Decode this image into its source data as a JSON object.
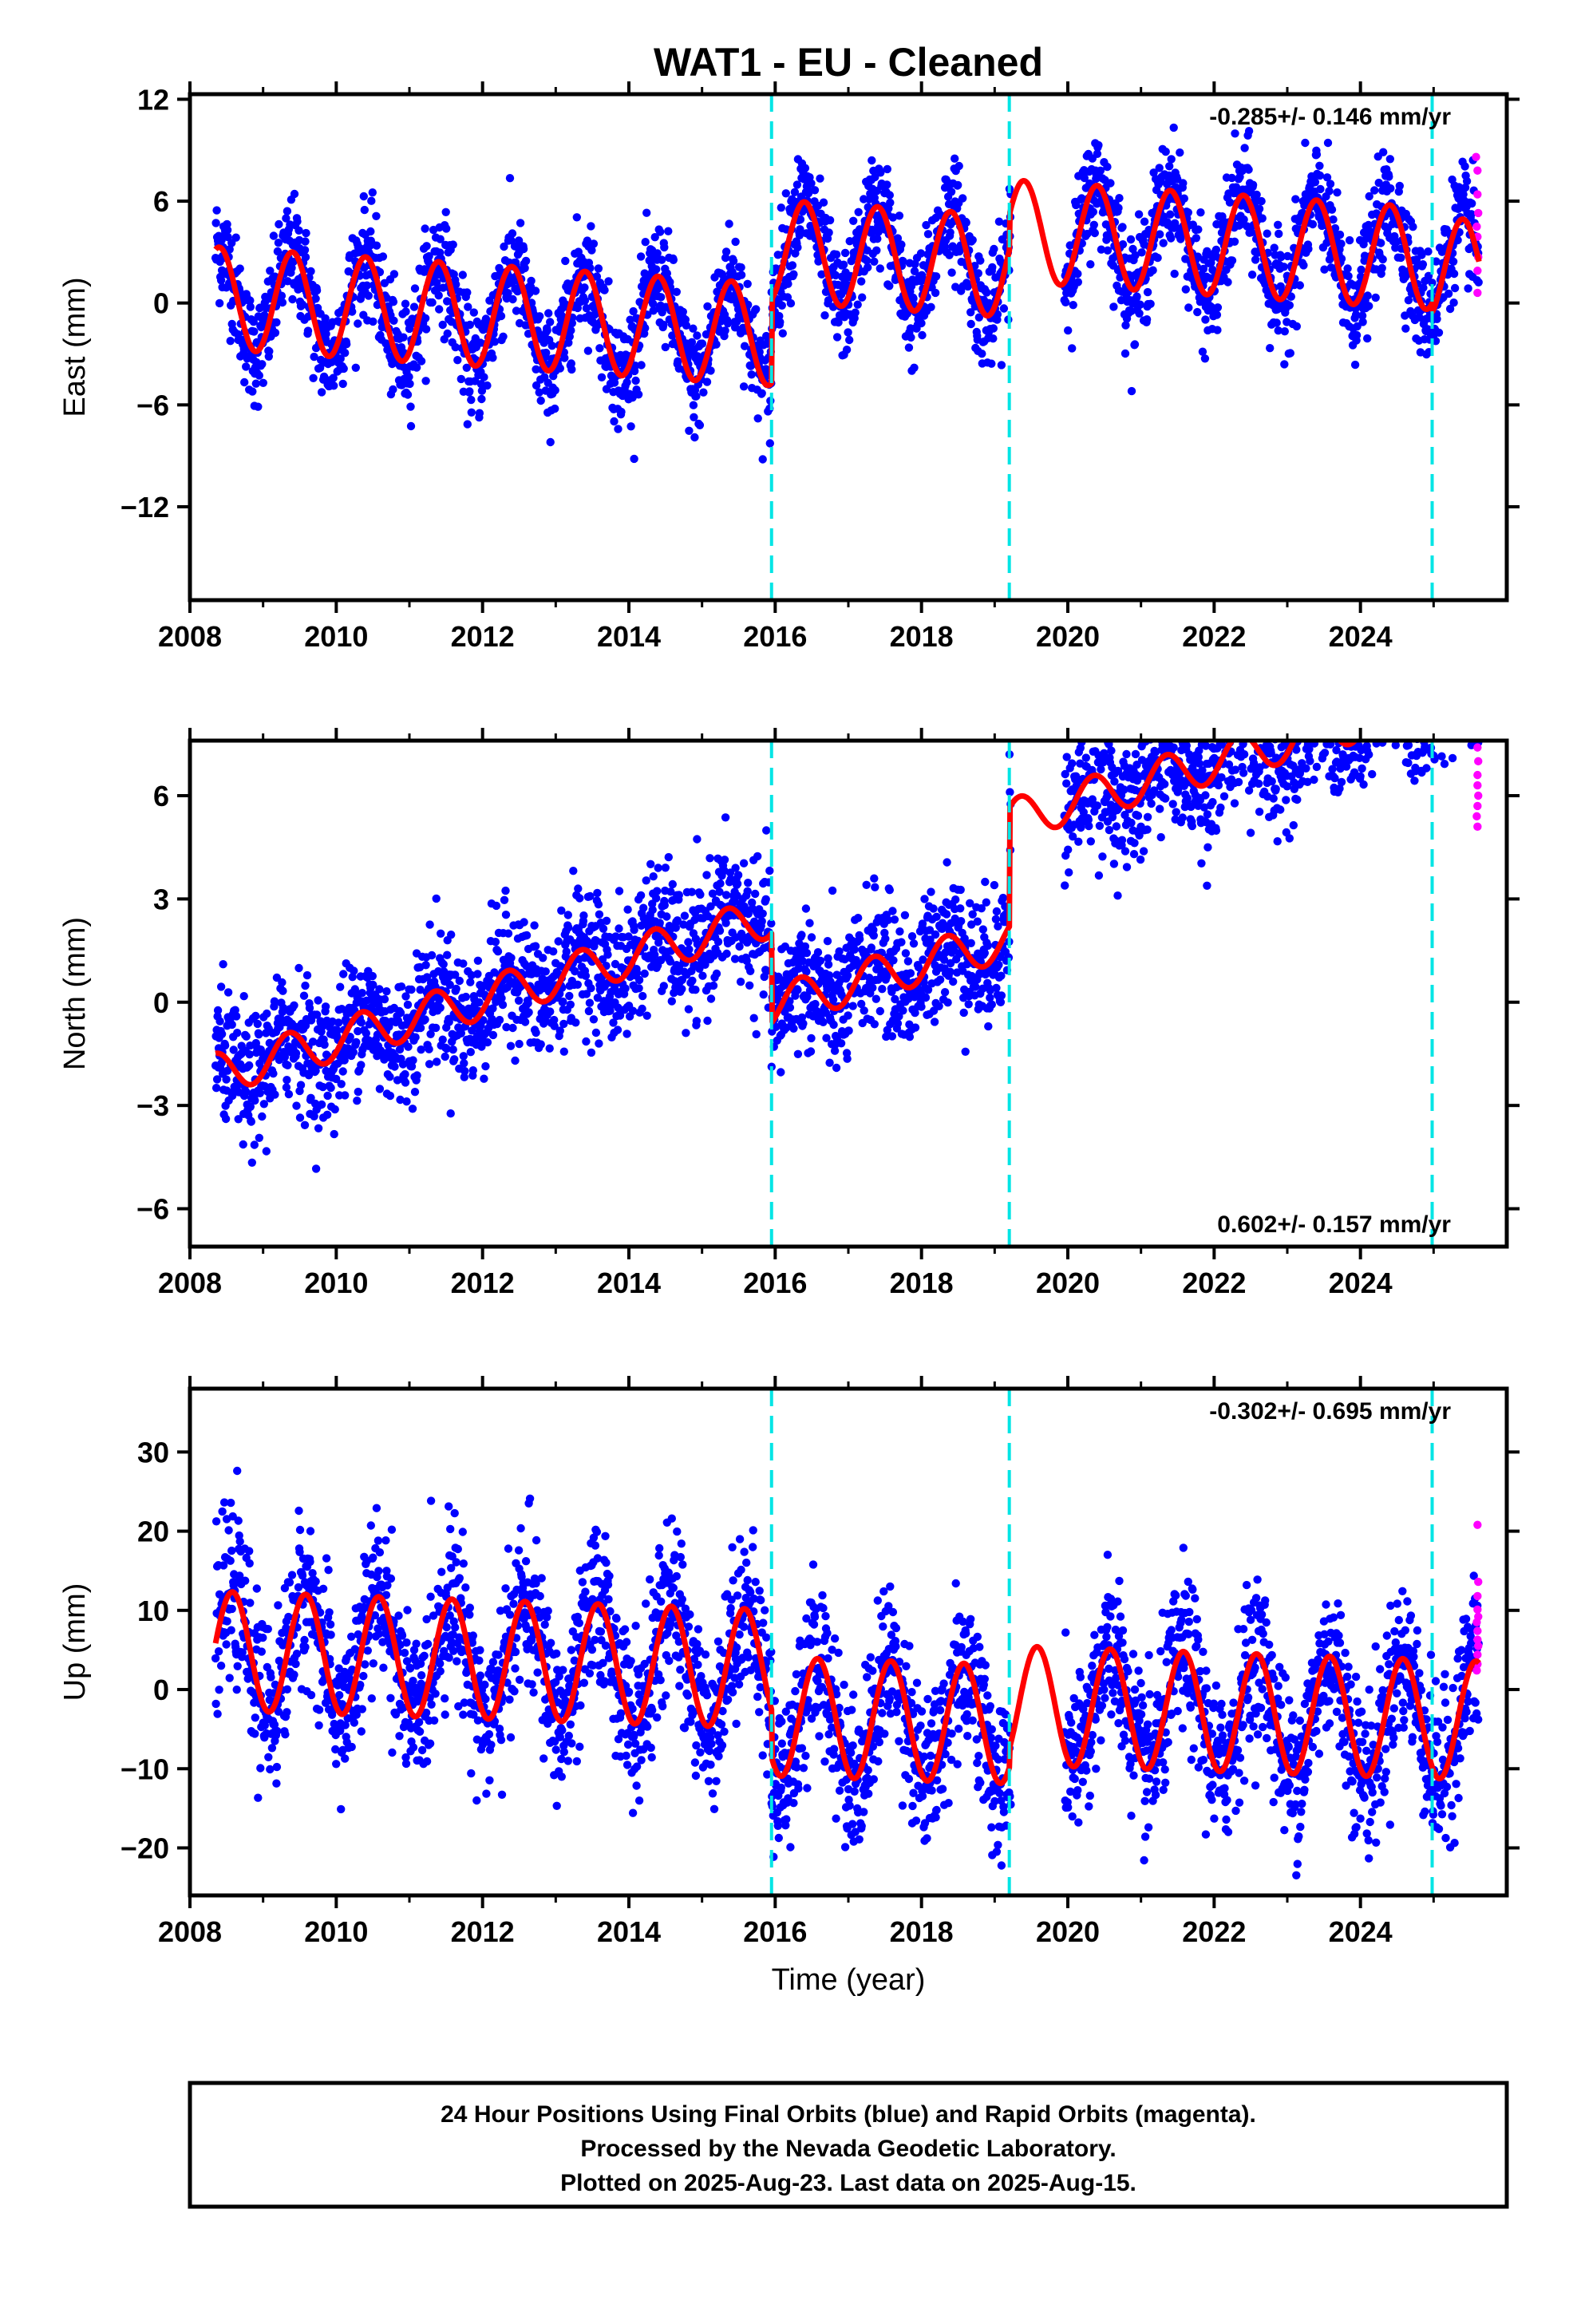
{
  "title": "WAT1  - EU - Cleaned",
  "xlabel": "Time (year)",
  "footer": {
    "line1": "24 Hour Positions Using Final Orbits (blue) and Rapid Orbits (magenta).",
    "line2": "Processed by the Nevada Geodetic Laboratory.",
    "line3": "Plotted on 2025-Aug-23. Last data on 2025-Aug-15."
  },
  "colors": {
    "final_orbits": "#0000ff",
    "rapid_orbits": "#ff00ff",
    "model": "#ff0000",
    "breaks": "#00e5e5"
  },
  "chart_data": [
    {
      "type": "scatter",
      "component": "east",
      "ylabel": "East (mm)",
      "xlim": [
        2008,
        2026
      ],
      "ylim": [
        -17.5,
        12.3
      ],
      "xticks": [
        2008,
        2010,
        2012,
        2014,
        2016,
        2018,
        2020,
        2022,
        2024
      ],
      "yticks": [
        -12,
        -6,
        0,
        6,
        12
      ],
      "grid": false,
      "rate_text": "-0.285+/- 0.146 mm/yr",
      "rate_position": "top-right",
      "breaks": [
        2015.95,
        2019.2,
        2024.98
      ],
      "model_segments": [
        {
          "x0": 2008.35,
          "x1": 2015.95,
          "offset": 0.4,
          "trend": -0.285,
          "amp": 3.0,
          "peak": 2008.4
        },
        {
          "x0": 2015.95,
          "x1": 2019.2,
          "offset": 5.35,
          "trend": -0.285,
          "amp": 3.0,
          "peak": 2008.4
        },
        {
          "x0": 2019.2,
          "x1": 2024.98,
          "offset": 7.45,
          "trend": -0.285,
          "amp": 3.0,
          "peak": 2008.4
        },
        {
          "x0": 2024.98,
          "x1": 2025.62,
          "offset": 6.9,
          "trend": -0.285,
          "amp": 3.0,
          "peak": 2008.4
        }
      ],
      "scatter_std": 1.6,
      "rapid_points": [
        [
          2025.58,
          8.6
        ],
        [
          2025.6,
          7.8
        ],
        [
          2025.6,
          6.4
        ],
        [
          2025.61,
          5.3
        ],
        [
          2025.59,
          4.5
        ],
        [
          2025.6,
          3.9
        ],
        [
          2025.61,
          2.7
        ],
        [
          2025.6,
          1.9
        ],
        [
          2025.6,
          0.6
        ]
      ]
    },
    {
      "type": "scatter",
      "component": "north",
      "ylabel": "North (mm)",
      "xlim": [
        2008,
        2026
      ],
      "ylim": [
        -7.1,
        7.6
      ],
      "xticks": [
        2008,
        2010,
        2012,
        2014,
        2016,
        2018,
        2020,
        2022,
        2024
      ],
      "yticks": [
        -6,
        -3,
        0,
        3,
        6
      ],
      "grid": false,
      "rate_text": "0.602+/- 0.157 mm/yr",
      "rate_position": "bottom-right",
      "breaks": [
        2015.95,
        2019.2,
        2024.98
      ],
      "model_segments": [
        {
          "x0": 2008.35,
          "x1": 2015.95,
          "offset": -2.3,
          "trend": 0.602,
          "amp": 0.6,
          "peak": 2008.35
        },
        {
          "x0": 2015.95,
          "x1": 2019.2,
          "offset": -4.9,
          "trend": 0.602,
          "amp": 0.6,
          "peak": 2008.35
        },
        {
          "x0": 2019.2,
          "x1": 2024.98,
          "offset": -1.45,
          "trend": 0.602,
          "amp": 0.6,
          "peak": 2008.35
        },
        {
          "x0": 2024.98,
          "x1": 2025.62,
          "offset": -1.2,
          "trend": 0.602,
          "amp": 0.6,
          "peak": 2008.35
        }
      ],
      "scatter_std": 0.95,
      "rapid_points": [
        [
          2025.6,
          7.4
        ],
        [
          2025.61,
          7.0
        ],
        [
          2025.6,
          6.6
        ],
        [
          2025.6,
          6.3
        ],
        [
          2025.61,
          6.0
        ],
        [
          2025.6,
          5.7
        ],
        [
          2025.59,
          5.4
        ],
        [
          2025.6,
          5.1
        ]
      ]
    },
    {
      "type": "scatter",
      "component": "up",
      "ylabel": "Up (mm)",
      "xlim": [
        2008,
        2026
      ],
      "ylim": [
        -26,
        38
      ],
      "xticks": [
        2008,
        2010,
        2012,
        2014,
        2016,
        2018,
        2020,
        2022,
        2024
      ],
      "yticks": [
        -20,
        -10,
        0,
        10,
        20,
        30
      ],
      "grid": false,
      "rate_text": "-0.302+/- 0.695 mm/yr",
      "rate_position": "top-right",
      "breaks": [
        2015.95,
        2019.2,
        2024.98
      ],
      "model_segments": [
        {
          "x0": 2008.35,
          "x1": 2015.95,
          "offset": 5.0,
          "trend": -0.302,
          "amp": 7.5,
          "peak": 2008.58
        },
        {
          "x0": 2015.95,
          "x1": 2019.2,
          "offset": -1.0,
          "trend": -0.302,
          "amp": 7.5,
          "peak": 2008.58
        },
        {
          "x0": 2019.2,
          "x1": 2024.98,
          "offset": 1.4,
          "trend": -0.302,
          "amp": 7.5,
          "peak": 2008.58
        },
        {
          "x0": 2024.98,
          "x1": 2025.62,
          "offset": 1.4,
          "trend": -0.302,
          "amp": 7.5,
          "peak": 2008.58
        }
      ],
      "scatter_std": 5.0,
      "rapid_points": [
        [
          2025.6,
          20.8
        ],
        [
          2025.61,
          13.6
        ],
        [
          2025.6,
          11.8
        ],
        [
          2025.6,
          10.1
        ],
        [
          2025.61,
          9.2
        ],
        [
          2025.59,
          8.5
        ],
        [
          2025.6,
          7.4
        ],
        [
          2025.6,
          6.3
        ],
        [
          2025.61,
          5.5
        ],
        [
          2025.6,
          4.4
        ],
        [
          2025.6,
          3.2
        ],
        [
          2025.59,
          2.4
        ]
      ]
    }
  ]
}
